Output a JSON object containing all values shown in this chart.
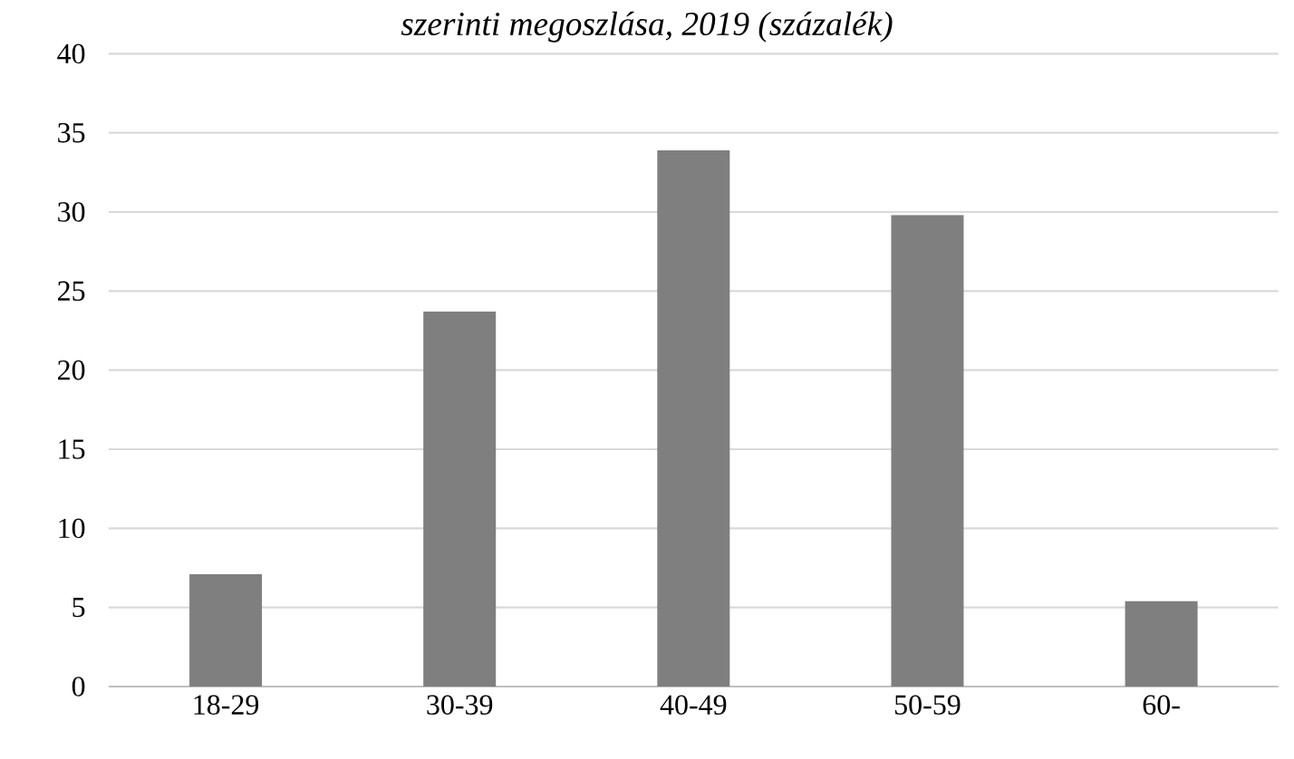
{
  "chart_data": {
    "type": "bar",
    "title": "szerinti megoszlása, 2019 (százalék)",
    "categories": [
      "18-29",
      "30-39",
      "40-49",
      "50-59",
      "60-"
    ],
    "values": [
      7.1,
      23.7,
      33.9,
      29.8,
      5.4
    ],
    "color": "#7f7f7f",
    "ylim": [
      0,
      40
    ],
    "yticks": [
      0,
      5,
      10,
      15,
      20,
      25,
      30,
      35,
      40
    ],
    "grid": "y"
  }
}
